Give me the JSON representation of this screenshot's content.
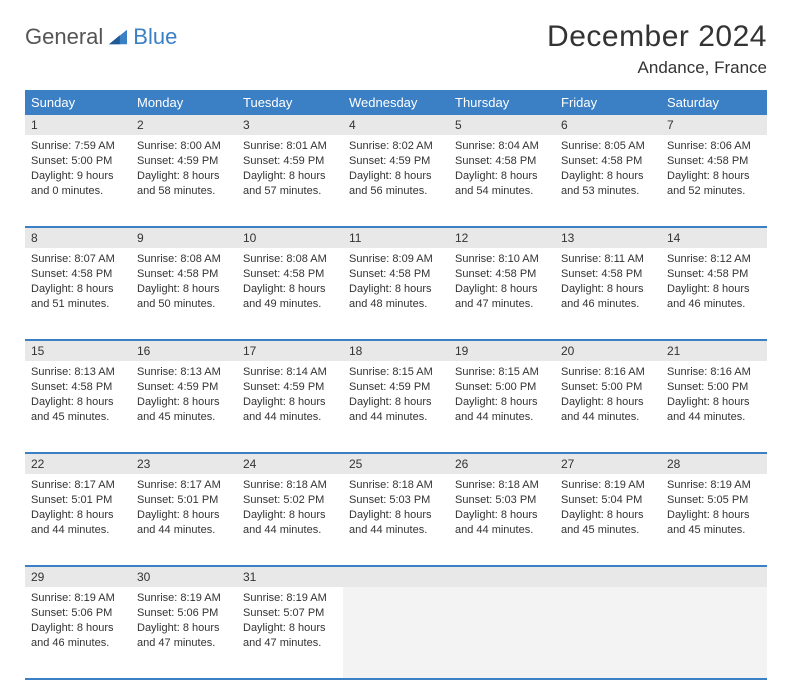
{
  "brand": {
    "word1": "General",
    "word2": "Blue"
  },
  "title": "December 2024",
  "location": "Andance, France",
  "colors": {
    "header_bg": "#3b7fc4",
    "header_fg": "#ffffff",
    "daynum_bg": "#e8e8e8",
    "border": "#3b7fc4",
    "empty_bg": "#f3f3f3",
    "text": "#333333",
    "logo_gray": "#555555",
    "logo_blue": "#3b7fc4"
  },
  "typography": {
    "title_fontsize": 30,
    "location_fontsize": 17,
    "dayheader_fontsize": 13,
    "daynum_fontsize": 12,
    "cell_fontsize": 11
  },
  "day_names": [
    "Sunday",
    "Monday",
    "Tuesday",
    "Wednesday",
    "Thursday",
    "Friday",
    "Saturday"
  ],
  "weeks": [
    [
      {
        "n": "1",
        "sunrise": "7:59 AM",
        "sunset": "5:00 PM",
        "daylight": "9 hours and 0 minutes."
      },
      {
        "n": "2",
        "sunrise": "8:00 AM",
        "sunset": "4:59 PM",
        "daylight": "8 hours and 58 minutes."
      },
      {
        "n": "3",
        "sunrise": "8:01 AM",
        "sunset": "4:59 PM",
        "daylight": "8 hours and 57 minutes."
      },
      {
        "n": "4",
        "sunrise": "8:02 AM",
        "sunset": "4:59 PM",
        "daylight": "8 hours and 56 minutes."
      },
      {
        "n": "5",
        "sunrise": "8:04 AM",
        "sunset": "4:58 PM",
        "daylight": "8 hours and 54 minutes."
      },
      {
        "n": "6",
        "sunrise": "8:05 AM",
        "sunset": "4:58 PM",
        "daylight": "8 hours and 53 minutes."
      },
      {
        "n": "7",
        "sunrise": "8:06 AM",
        "sunset": "4:58 PM",
        "daylight": "8 hours and 52 minutes."
      }
    ],
    [
      {
        "n": "8",
        "sunrise": "8:07 AM",
        "sunset": "4:58 PM",
        "daylight": "8 hours and 51 minutes."
      },
      {
        "n": "9",
        "sunrise": "8:08 AM",
        "sunset": "4:58 PM",
        "daylight": "8 hours and 50 minutes."
      },
      {
        "n": "10",
        "sunrise": "8:08 AM",
        "sunset": "4:58 PM",
        "daylight": "8 hours and 49 minutes."
      },
      {
        "n": "11",
        "sunrise": "8:09 AM",
        "sunset": "4:58 PM",
        "daylight": "8 hours and 48 minutes."
      },
      {
        "n": "12",
        "sunrise": "8:10 AM",
        "sunset": "4:58 PM",
        "daylight": "8 hours and 47 minutes."
      },
      {
        "n": "13",
        "sunrise": "8:11 AM",
        "sunset": "4:58 PM",
        "daylight": "8 hours and 46 minutes."
      },
      {
        "n": "14",
        "sunrise": "8:12 AM",
        "sunset": "4:58 PM",
        "daylight": "8 hours and 46 minutes."
      }
    ],
    [
      {
        "n": "15",
        "sunrise": "8:13 AM",
        "sunset": "4:58 PM",
        "daylight": "8 hours and 45 minutes."
      },
      {
        "n": "16",
        "sunrise": "8:13 AM",
        "sunset": "4:59 PM",
        "daylight": "8 hours and 45 minutes."
      },
      {
        "n": "17",
        "sunrise": "8:14 AM",
        "sunset": "4:59 PM",
        "daylight": "8 hours and 44 minutes."
      },
      {
        "n": "18",
        "sunrise": "8:15 AM",
        "sunset": "4:59 PM",
        "daylight": "8 hours and 44 minutes."
      },
      {
        "n": "19",
        "sunrise": "8:15 AM",
        "sunset": "5:00 PM",
        "daylight": "8 hours and 44 minutes."
      },
      {
        "n": "20",
        "sunrise": "8:16 AM",
        "sunset": "5:00 PM",
        "daylight": "8 hours and 44 minutes."
      },
      {
        "n": "21",
        "sunrise": "8:16 AM",
        "sunset": "5:00 PM",
        "daylight": "8 hours and 44 minutes."
      }
    ],
    [
      {
        "n": "22",
        "sunrise": "8:17 AM",
        "sunset": "5:01 PM",
        "daylight": "8 hours and 44 minutes."
      },
      {
        "n": "23",
        "sunrise": "8:17 AM",
        "sunset": "5:01 PM",
        "daylight": "8 hours and 44 minutes."
      },
      {
        "n": "24",
        "sunrise": "8:18 AM",
        "sunset": "5:02 PM",
        "daylight": "8 hours and 44 minutes."
      },
      {
        "n": "25",
        "sunrise": "8:18 AM",
        "sunset": "5:03 PM",
        "daylight": "8 hours and 44 minutes."
      },
      {
        "n": "26",
        "sunrise": "8:18 AM",
        "sunset": "5:03 PM",
        "daylight": "8 hours and 44 minutes."
      },
      {
        "n": "27",
        "sunrise": "8:19 AM",
        "sunset": "5:04 PM",
        "daylight": "8 hours and 45 minutes."
      },
      {
        "n": "28",
        "sunrise": "8:19 AM",
        "sunset": "5:05 PM",
        "daylight": "8 hours and 45 minutes."
      }
    ],
    [
      {
        "n": "29",
        "sunrise": "8:19 AM",
        "sunset": "5:06 PM",
        "daylight": "8 hours and 46 minutes."
      },
      {
        "n": "30",
        "sunrise": "8:19 AM",
        "sunset": "5:06 PM",
        "daylight": "8 hours and 47 minutes."
      },
      {
        "n": "31",
        "sunrise": "8:19 AM",
        "sunset": "5:07 PM",
        "daylight": "8 hours and 47 minutes."
      },
      null,
      null,
      null,
      null
    ]
  ],
  "labels": {
    "sunrise": "Sunrise:",
    "sunset": "Sunset:",
    "daylight": "Daylight:"
  }
}
